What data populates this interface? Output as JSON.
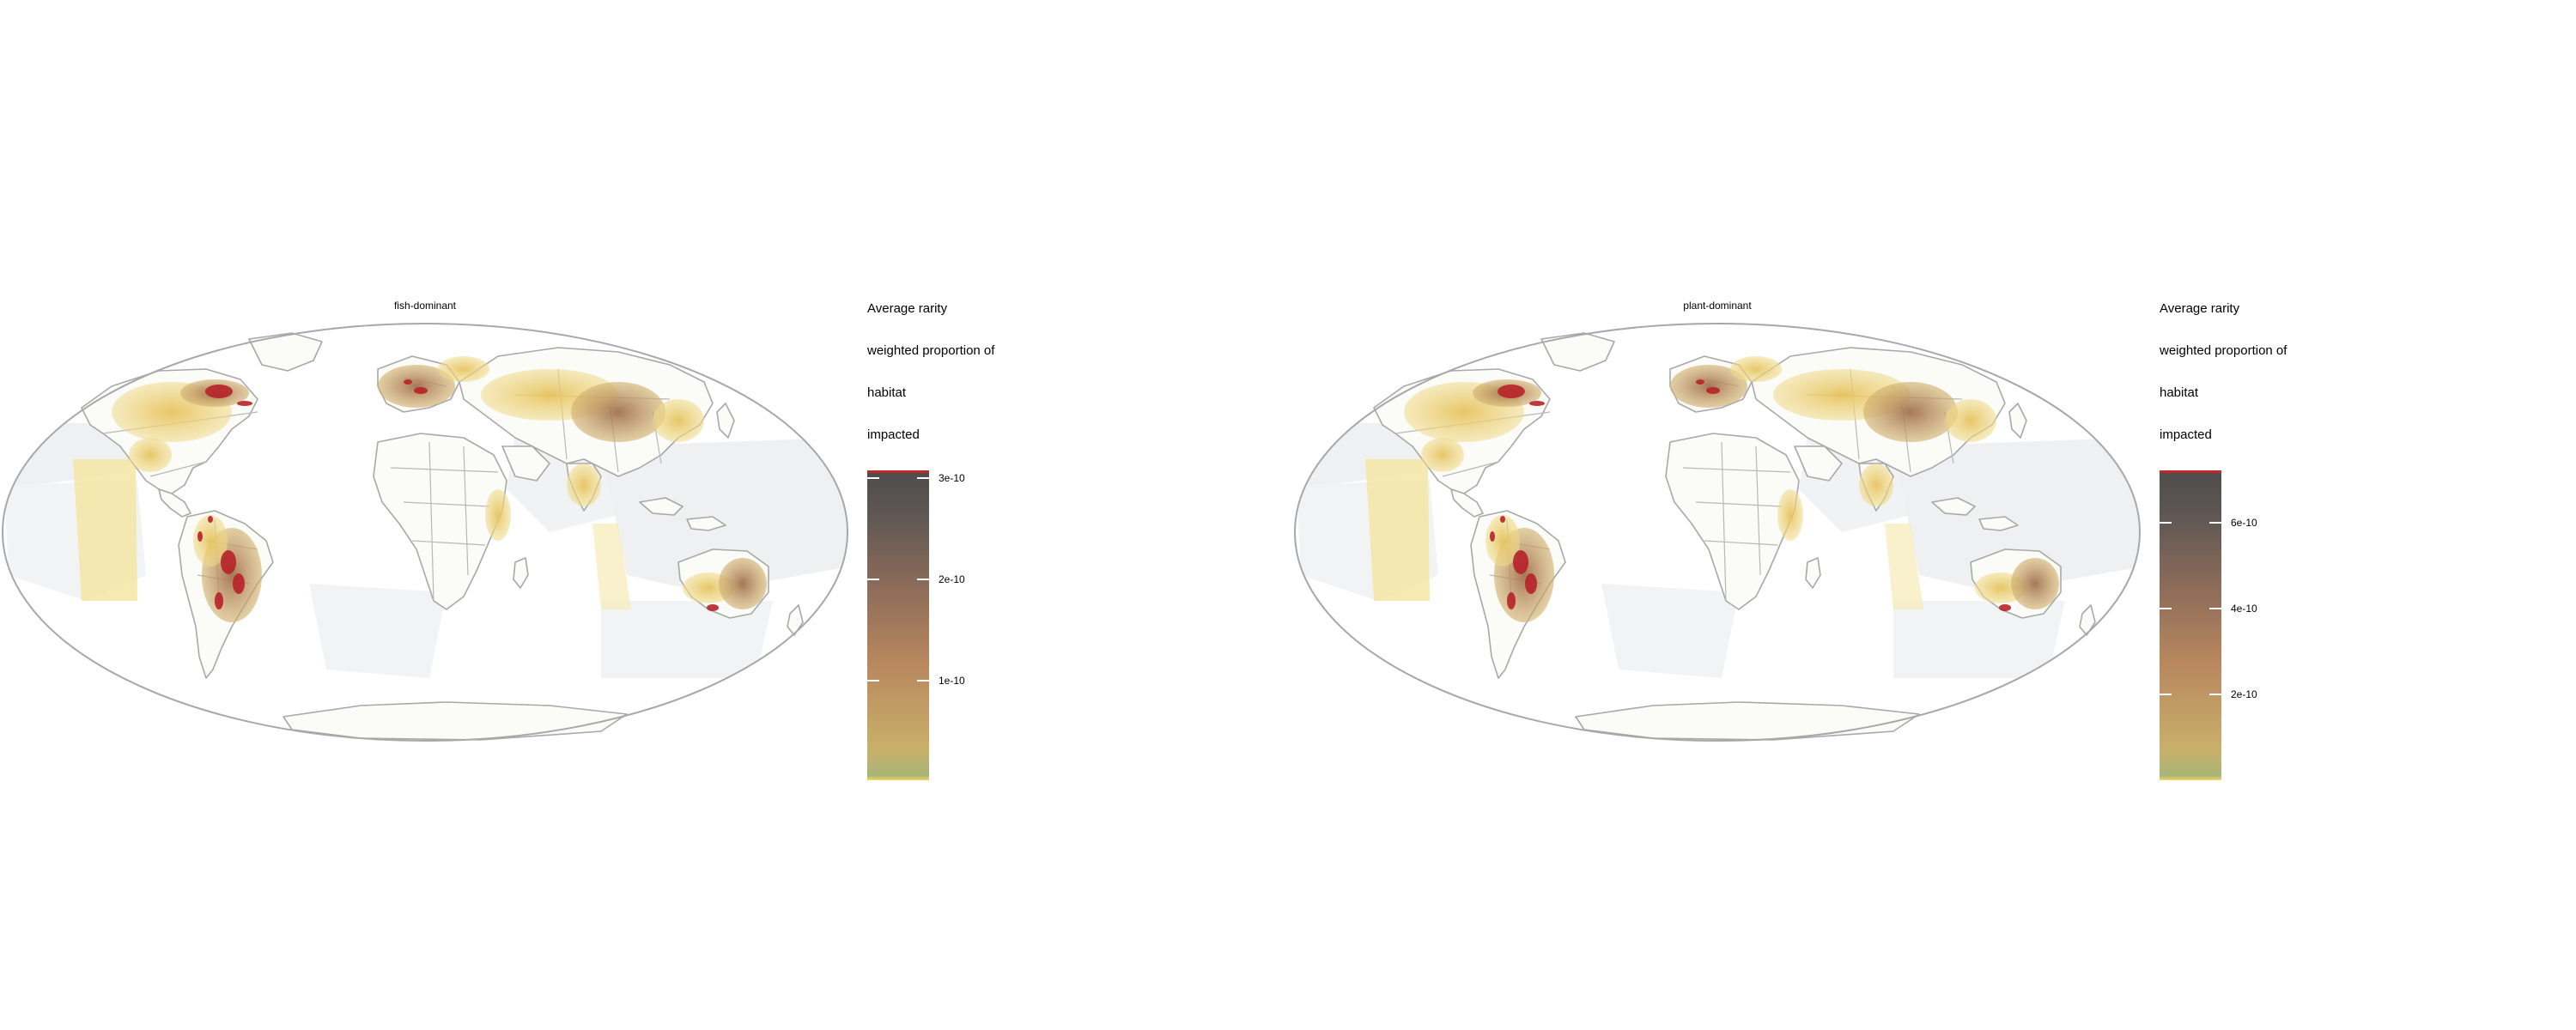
{
  "panels": [
    {
      "title": "fish-dominant",
      "legend": {
        "title_lines": [
          "Average rarity",
          "weighted proportion of",
          "habitat",
          "impacted"
        ],
        "ticks": [
          "3e-10",
          "2e-10",
          "1e-10"
        ],
        "max": 3.05e-10,
        "min": 0
      }
    },
    {
      "title": "plant-dominant",
      "legend": {
        "title_lines": [
          "Average rarity",
          "weighted proportion of",
          "habitat",
          "impacted"
        ],
        "ticks": [
          "6e-10",
          "4e-10",
          "2e-10"
        ],
        "max": 7.2e-10,
        "min": 0
      }
    }
  ],
  "colors": {
    "low": "#f3d45c",
    "mid": "#b8875e",
    "high": "#4e4c4d",
    "extreme": "#c0282b",
    "ocean_grey": "#eef0f2",
    "borders": "#a8a8a8"
  }
}
